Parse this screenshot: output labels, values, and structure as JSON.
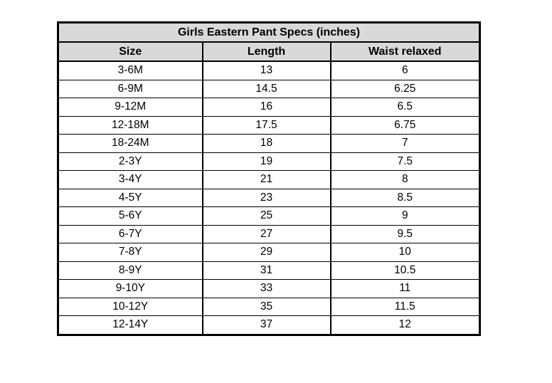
{
  "table": {
    "title": "Girls Eastern Pant Specs (inches)",
    "columns": [
      "Size",
      "Length",
      "Waist relaxed"
    ],
    "rows": [
      [
        "3-6M",
        "13",
        "6"
      ],
      [
        "6-9M",
        "14.5",
        "6.25"
      ],
      [
        "9-12M",
        "16",
        "6.5"
      ],
      [
        "12-18M",
        "17.5",
        "6.75"
      ],
      [
        "18-24M",
        "18",
        "7"
      ],
      [
        "2-3Y",
        "19",
        "7.5"
      ],
      [
        "3-4Y",
        "21",
        "8"
      ],
      [
        "4-5Y",
        "23",
        "8.5"
      ],
      [
        "5-6Y",
        "25",
        "9"
      ],
      [
        "6-7Y",
        "27",
        "9.5"
      ],
      [
        "7-8Y",
        "29",
        "10"
      ],
      [
        "8-9Y",
        "31",
        "10.5"
      ],
      [
        "9-10Y",
        "33",
        "11"
      ],
      [
        "10-12Y",
        "35",
        "11.5"
      ],
      [
        "12-14Y",
        "37",
        "12"
      ]
    ],
    "colors": {
      "header_background": "#d9d9d9",
      "border": "#000000",
      "text": "#000000",
      "page_background": "#ffffff"
    }
  },
  "chart_data": {
    "type": "table",
    "title": "Girls Eastern Pant Specs (inches)",
    "columns": [
      "Size",
      "Length",
      "Waist relaxed"
    ],
    "rows": [
      [
        "3-6M",
        "13",
        "6"
      ],
      [
        "6-9M",
        "14.5",
        "6.25"
      ],
      [
        "9-12M",
        "16",
        "6.5"
      ],
      [
        "12-18M",
        "17.5",
        "6.75"
      ],
      [
        "18-24M",
        "18",
        "7"
      ],
      [
        "2-3Y",
        "19",
        "7.5"
      ],
      [
        "3-4Y",
        "21",
        "8"
      ],
      [
        "4-5Y",
        "23",
        "8.5"
      ],
      [
        "5-6Y",
        "25",
        "9"
      ],
      [
        "6-7Y",
        "27",
        "9.5"
      ],
      [
        "7-8Y",
        "29",
        "10"
      ],
      [
        "8-9Y",
        "31",
        "10.5"
      ],
      [
        "9-10Y",
        "33",
        "11"
      ],
      [
        "10-12Y",
        "35",
        "11.5"
      ],
      [
        "12-14Y",
        "37",
        "12"
      ]
    ]
  }
}
